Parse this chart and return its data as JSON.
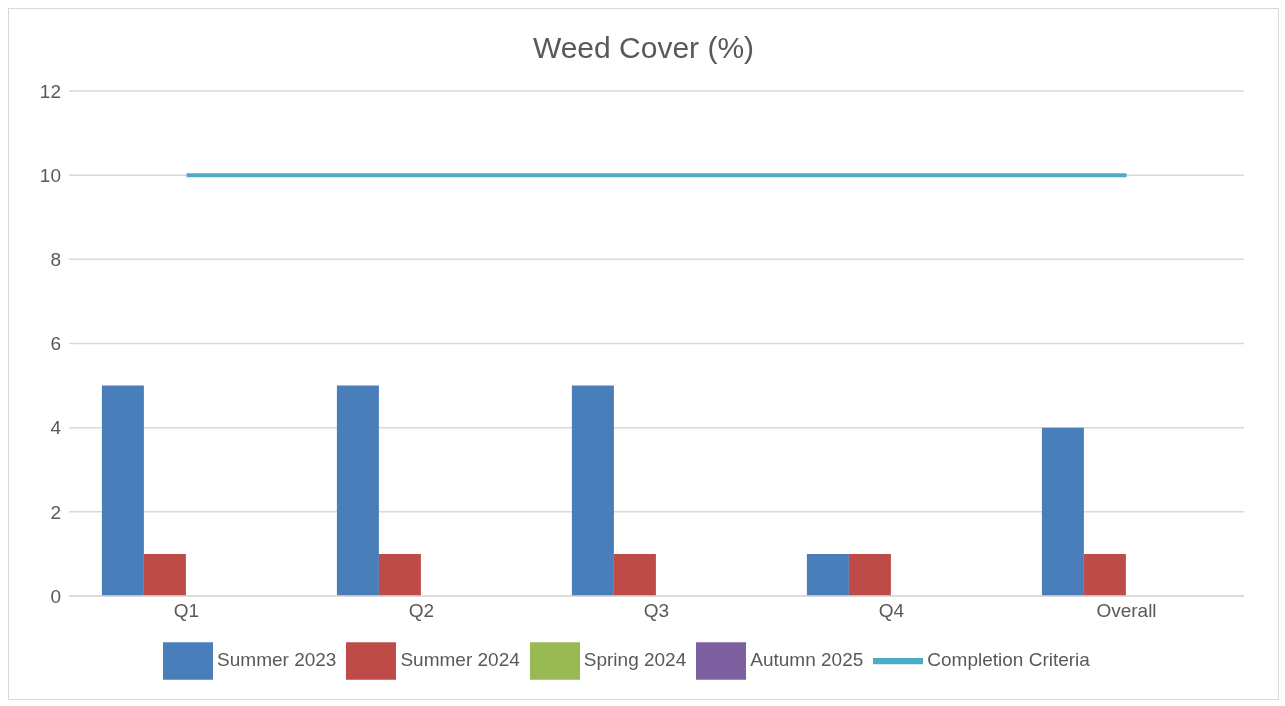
{
  "chart_data": {
    "type": "bar",
    "title": "Weed Cover (%)",
    "categories": [
      "Q1",
      "Q2",
      "Q3",
      "Q4",
      "Overall"
    ],
    "series": [
      {
        "name": "Summer 2023",
        "color": "#4a7ebb",
        "values": [
          5,
          5,
          5,
          1,
          4
        ]
      },
      {
        "name": "Summer 2024",
        "color": "#be4b48",
        "values": [
          1,
          1,
          1,
          1,
          1
        ]
      },
      {
        "name": "Spring 2024",
        "color": "#98b954",
        "values": [
          null,
          null,
          null,
          null,
          null
        ]
      },
      {
        "name": "Autumn 2025",
        "color": "#7d60a0",
        "values": [
          null,
          null,
          null,
          null,
          null
        ]
      },
      {
        "name": "Completion Criteria",
        "type": "line",
        "color": "#4bacc6",
        "values": [
          10,
          10,
          10,
          10,
          10
        ]
      }
    ],
    "ylim": [
      0,
      12
    ],
    "yticks": [
      0,
      2,
      4,
      6,
      8,
      10,
      12
    ],
    "grid": "y",
    "legend": "bottom",
    "marker": "none"
  }
}
